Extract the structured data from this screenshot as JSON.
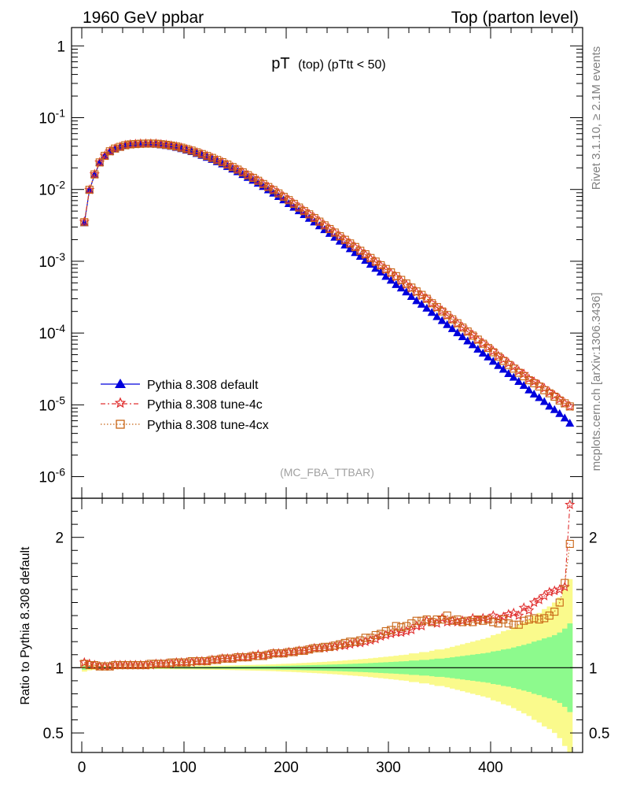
{
  "header": {
    "left": "1960 GeV ppbar",
    "right": "Top (parton level)"
  },
  "side_labels": {
    "top": "Rivet 3.1.10, ≥ 2.1M events",
    "bottom": "mcplots.cern.ch [arXiv:1306.3436]"
  },
  "colors": {
    "default": "#0000dd",
    "tune4c": "#e03030",
    "tune4cx": "#c86414",
    "band_inner": "#8dfa8d",
    "band_outer": "#fafa8c"
  },
  "chart_data": [
    {
      "type": "line",
      "title_main": "pT",
      "title_sub": "(top)  (pTtt < 50)",
      "watermark": "(MC_FBA_TTBAR)",
      "yscale": "log",
      "xlim": [
        -10,
        490
      ],
      "ylim": [
        5e-07,
        1.8
      ],
      "ytick_labels": [
        "1",
        "10^-1",
        "10^-2",
        "10^-3",
        "10^-4",
        "10^-5",
        "10^-6"
      ],
      "legend_position": "lower-left",
      "x": [
        2.5,
        7.5,
        12.5,
        17.5,
        22.5,
        27.5,
        32.5,
        37.5,
        42.5,
        47.5,
        52.5,
        57.5,
        62.5,
        67.5,
        72.5,
        77.5,
        82.5,
        87.5,
        92.5,
        97.5,
        102.5,
        107.5,
        112.5,
        117.5,
        122.5,
        127.5,
        132.5,
        137.5,
        142.5,
        147.5,
        152.5,
        157.5,
        162.5,
        167.5,
        172.5,
        177.5,
        182.5,
        187.5,
        192.5,
        197.5,
        202.5,
        207.5,
        212.5,
        217.5,
        222.5,
        227.5,
        232.5,
        237.5,
        242.5,
        247.5,
        252.5,
        257.5,
        262.5,
        267.5,
        272.5,
        277.5,
        282.5,
        287.5,
        292.5,
        297.5,
        302.5,
        307.5,
        312.5,
        317.5,
        322.5,
        327.5,
        332.5,
        337.5,
        342.5,
        347.5,
        352.5,
        357.5,
        362.5,
        367.5,
        372.5,
        377.5,
        382.5,
        387.5,
        392.5,
        397.5,
        402.5,
        407.5,
        412.5,
        417.5,
        422.5,
        427.5,
        432.5,
        437.5,
        442.5,
        447.5,
        452.5,
        457.5,
        462.5,
        467.5,
        472.5,
        477.5
      ],
      "series": [
        {
          "name": "Pythia 8.308 default",
          "values": [
            0.0034,
            0.0098,
            0.016,
            0.0235,
            0.029,
            0.0335,
            0.0365,
            0.0385,
            0.0405,
            0.0415,
            0.042,
            0.0425,
            0.0425,
            0.0425,
            0.0422,
            0.0415,
            0.0405,
            0.0395,
            0.0382,
            0.0367,
            0.035,
            0.0333,
            0.0314,
            0.0296,
            0.0278,
            0.026,
            0.0242,
            0.0225,
            0.0207,
            0.0191,
            0.0175,
            0.016,
            0.0146,
            0.0133,
            0.0121,
            0.0109,
            0.0098,
            0.0088,
            0.0079,
            0.0071,
            0.0063,
            0.0056,
            0.005,
            0.00443,
            0.00393,
            0.00349,
            0.00309,
            0.00273,
            0.00242,
            0.00214,
            0.00189,
            0.00167,
            0.00148,
            0.00131,
            0.00116,
            0.00102,
            0.0009,
            0.00079,
            0.0007,
            0.00061,
            0.00054,
            0.00047,
            0.00042,
            0.00037,
            0.00032,
            0.00028,
            0.00025,
            0.00022,
            0.000192,
            0.000168,
            0.000148,
            0.00013,
            0.000114,
            0.0001,
            8.8e-05,
            7.7e-05,
            6.8e-05,
            5.9e-05,
            5.2e-05,
            4.6e-05,
            4e-05,
            3.5e-05,
            3.1e-05,
            2.7e-05,
            2.4e-05,
            2.1e-05,
            1.85e-05,
            1.6e-05,
            1.4e-05,
            1.25e-05,
            1.1e-05,
            9.5e-06,
            8.5e-06,
            7.5e-06,
            6.5e-06,
            5.5e-06
          ]
        },
        {
          "name": "Pythia 8.308 tune-4c",
          "values": [
            0.00355,
            0.0099,
            0.0163,
            0.0239,
            0.0295,
            0.0341,
            0.0372,
            0.0393,
            0.0414,
            0.0424,
            0.0429,
            0.0433,
            0.0434,
            0.0435,
            0.0433,
            0.0426,
            0.0418,
            0.0408,
            0.0396,
            0.0381,
            0.0364,
            0.0347,
            0.0328,
            0.0311,
            0.0293,
            0.0275,
            0.0256,
            0.024,
            0.0221,
            0.0205,
            0.0189,
            0.0173,
            0.0158,
            0.0145,
            0.0133,
            0.0119,
            0.0108,
            0.0098,
            0.0088,
            0.0079,
            0.0071,
            0.0063,
            0.0056,
            0.005,
            0.0045,
            0.004,
            0.00355,
            0.00315,
            0.0028,
            0.00249,
            0.00221,
            0.00196,
            0.00175,
            0.00156,
            0.00138,
            0.00123,
            0.00109,
            0.00097,
            0.00087,
            0.00076,
            0.00068,
            0.0006,
            0.00053,
            0.00047,
            0.00042,
            0.00037,
            0.00033,
            0.0003,
            0.00026,
            0.000225,
            0.000205,
            0.000175,
            0.000155,
            0.000135,
            0.00012,
            0.000104,
            9.4e-05,
            8e-05,
            7.2e-05,
            6.3e-05,
            5.6e-05,
            4.8e-05,
            4.3e-05,
            3.8e-05,
            3.4e-05,
            2.95e-05,
            2.7e-05,
            2.3e-05,
            2.1e-05,
            1.9e-05,
            1.7e-05,
            1.5e-05,
            1.35e-05,
            1.2e-05,
            1.05e-05,
            9.5e-06
          ]
        },
        {
          "name": "Pythia 8.308 tune-4cx",
          "values": [
            0.0035,
            0.0099,
            0.0162,
            0.0238,
            0.0294,
            0.034,
            0.0371,
            0.0392,
            0.0413,
            0.0424,
            0.0429,
            0.0433,
            0.0435,
            0.0436,
            0.0434,
            0.0427,
            0.0419,
            0.0409,
            0.0397,
            0.0382,
            0.0365,
            0.0348,
            0.0329,
            0.0311,
            0.0293,
            0.0275,
            0.0257,
            0.024,
            0.0222,
            0.0205,
            0.0189,
            0.0173,
            0.0158,
            0.0145,
            0.0132,
            0.0119,
            0.0108,
            0.0098,
            0.0088,
            0.0079,
            0.0071,
            0.0063,
            0.0056,
            0.005,
            0.0045,
            0.004,
            0.00356,
            0.00316,
            0.00281,
            0.00251,
            0.00223,
            0.00199,
            0.00177,
            0.00158,
            0.0014,
            0.00125,
            0.00111,
            0.00099,
            0.00088,
            0.00078,
            0.0007,
            0.00062,
            0.00055,
            0.00049,
            0.00043,
            0.00038,
            0.00034,
            0.0003,
            0.00026,
            0.00023,
            0.0002,
            0.000178,
            0.000155,
            0.000137,
            0.000119,
            0.000105,
            9.2e-05,
            8.1e-05,
            7.1e-05,
            6.2e-05,
            5.4e-05,
            4.7e-05,
            4.1e-05,
            3.6e-05,
            3.2e-05,
            2.8e-05,
            2.5e-05,
            2.2e-05,
            2e-05,
            1.8e-05,
            1.6e-05,
            1.45e-05,
            1.3e-05,
            1.15e-05,
            1.05e-05,
            9.5e-06
          ]
        }
      ]
    },
    {
      "type": "line",
      "ylabel": "Ratio to Pythia 8.308 default",
      "xlim": [
        -10,
        490
      ],
      "ylim": [
        0.35,
        2.3
      ],
      "xticks": [
        0,
        100,
        200,
        300,
        400
      ],
      "yticks": [
        0.5,
        1,
        2
      ],
      "reference_line": 1,
      "x": [
        2.5,
        7.5,
        12.5,
        17.5,
        22.5,
        27.5,
        32.5,
        37.5,
        42.5,
        47.5,
        52.5,
        57.5,
        62.5,
        67.5,
        72.5,
        77.5,
        82.5,
        87.5,
        92.5,
        97.5,
        102.5,
        107.5,
        112.5,
        117.5,
        122.5,
        127.5,
        132.5,
        137.5,
        142.5,
        147.5,
        152.5,
        157.5,
        162.5,
        167.5,
        172.5,
        177.5,
        182.5,
        187.5,
        192.5,
        197.5,
        202.5,
        207.5,
        212.5,
        217.5,
        222.5,
        227.5,
        232.5,
        237.5,
        242.5,
        247.5,
        252.5,
        257.5,
        262.5,
        267.5,
        272.5,
        277.5,
        282.5,
        287.5,
        292.5,
        297.5,
        302.5,
        307.5,
        312.5,
        317.5,
        322.5,
        327.5,
        332.5,
        337.5,
        342.5,
        347.5,
        352.5,
        357.5,
        362.5,
        367.5,
        372.5,
        377.5,
        382.5,
        387.5,
        392.5,
        397.5,
        402.5,
        407.5,
        412.5,
        417.5,
        422.5,
        427.5,
        432.5,
        437.5,
        442.5,
        447.5,
        452.5,
        457.5,
        462.5,
        467.5,
        472.5,
        477.5
      ],
      "band_outer": [
        0.03,
        0.02,
        0.015,
        0.012,
        0.01,
        0.01,
        0.01,
        0.01,
        0.01,
        0.01,
        0.01,
        0.01,
        0.01,
        0.01,
        0.01,
        0.01,
        0.011,
        0.011,
        0.012,
        0.012,
        0.013,
        0.013,
        0.014,
        0.014,
        0.015,
        0.015,
        0.016,
        0.016,
        0.017,
        0.018,
        0.019,
        0.02,
        0.021,
        0.022,
        0.023,
        0.024,
        0.025,
        0.026,
        0.028,
        0.03,
        0.031,
        0.033,
        0.035,
        0.037,
        0.039,
        0.041,
        0.043,
        0.045,
        0.048,
        0.05,
        0.053,
        0.056,
        0.059,
        0.062,
        0.065,
        0.068,
        0.072,
        0.076,
        0.08,
        0.084,
        0.088,
        0.092,
        0.097,
        0.1,
        0.11,
        0.11,
        0.12,
        0.12,
        0.13,
        0.14,
        0.14,
        0.15,
        0.16,
        0.17,
        0.18,
        0.19,
        0.2,
        0.21,
        0.22,
        0.23,
        0.25,
        0.26,
        0.28,
        0.29,
        0.31,
        0.33,
        0.35,
        0.37,
        0.4,
        0.42,
        0.45,
        0.47,
        0.5,
        0.54,
        0.6,
        0.68
      ],
      "band_inner": [
        0.015,
        0.01,
        0.008,
        0.006,
        0.005,
        0.005,
        0.005,
        0.005,
        0.005,
        0.005,
        0.005,
        0.005,
        0.005,
        0.005,
        0.005,
        0.005,
        0.0055,
        0.0055,
        0.006,
        0.006,
        0.0065,
        0.0065,
        0.007,
        0.007,
        0.0075,
        0.0075,
        0.008,
        0.008,
        0.0085,
        0.009,
        0.0095,
        0.01,
        0.0105,
        0.011,
        0.0115,
        0.012,
        0.0125,
        0.013,
        0.014,
        0.015,
        0.0155,
        0.0165,
        0.0175,
        0.0185,
        0.0195,
        0.0205,
        0.0215,
        0.0225,
        0.024,
        0.025,
        0.0265,
        0.028,
        0.0295,
        0.031,
        0.0325,
        0.034,
        0.036,
        0.038,
        0.04,
        0.042,
        0.044,
        0.046,
        0.0485,
        0.05,
        0.055,
        0.055,
        0.06,
        0.06,
        0.065,
        0.07,
        0.07,
        0.075,
        0.08,
        0.085,
        0.09,
        0.095,
        0.1,
        0.105,
        0.11,
        0.115,
        0.125,
        0.13,
        0.14,
        0.145,
        0.155,
        0.165,
        0.175,
        0.185,
        0.2,
        0.21,
        0.225,
        0.235,
        0.25,
        0.27,
        0.3,
        0.34
      ],
      "series": [
        {
          "name": "Pythia 8.308 tune-4c",
          "values": [
            1.04,
            1.03,
            1.02,
            1.01,
            1.01,
            1.01,
            1.02,
            1.02,
            1.02,
            1.02,
            1.02,
            1.02,
            1.02,
            1.02,
            1.03,
            1.03,
            1.03,
            1.03,
            1.04,
            1.04,
            1.04,
            1.04,
            1.05,
            1.05,
            1.05,
            1.06,
            1.06,
            1.07,
            1.07,
            1.07,
            1.08,
            1.08,
            1.08,
            1.09,
            1.1,
            1.09,
            1.1,
            1.11,
            1.11,
            1.11,
            1.12,
            1.12,
            1.13,
            1.13,
            1.14,
            1.15,
            1.15,
            1.15,
            1.16,
            1.16,
            1.17,
            1.17,
            1.18,
            1.19,
            1.19,
            1.2,
            1.21,
            1.22,
            1.24,
            1.25,
            1.26,
            1.27,
            1.27,
            1.28,
            1.29,
            1.32,
            1.32,
            1.36,
            1.35,
            1.34,
            1.38,
            1.35,
            1.36,
            1.35,
            1.36,
            1.35,
            1.38,
            1.36,
            1.38,
            1.37,
            1.4,
            1.37,
            1.39,
            1.41,
            1.42,
            1.4,
            1.46,
            1.44,
            1.5,
            1.52,
            1.55,
            1.58,
            1.59,
            1.6,
            1.62,
            2.25
          ]
        },
        {
          "name": "Pythia 8.308 tune-4cx",
          "values": [
            1.03,
            1.02,
            1.02,
            1.01,
            1.01,
            1.01,
            1.02,
            1.02,
            1.02,
            1.02,
            1.02,
            1.02,
            1.02,
            1.03,
            1.03,
            1.03,
            1.03,
            1.04,
            1.04,
            1.04,
            1.04,
            1.05,
            1.05,
            1.05,
            1.05,
            1.06,
            1.06,
            1.07,
            1.07,
            1.07,
            1.08,
            1.08,
            1.08,
            1.09,
            1.09,
            1.09,
            1.1,
            1.11,
            1.11,
            1.11,
            1.12,
            1.12,
            1.13,
            1.13,
            1.14,
            1.15,
            1.15,
            1.16,
            1.16,
            1.17,
            1.18,
            1.19,
            1.2,
            1.2,
            1.21,
            1.23,
            1.23,
            1.25,
            1.26,
            1.28,
            1.29,
            1.32,
            1.31,
            1.32,
            1.34,
            1.36,
            1.36,
            1.37,
            1.35,
            1.37,
            1.37,
            1.4,
            1.36,
            1.37,
            1.35,
            1.36,
            1.35,
            1.37,
            1.36,
            1.37,
            1.35,
            1.34,
            1.37,
            1.34,
            1.33,
            1.33,
            1.36,
            1.37,
            1.38,
            1.37,
            1.38,
            1.4,
            1.43,
            1.5,
            1.65,
            1.95
          ]
        }
      ]
    }
  ]
}
